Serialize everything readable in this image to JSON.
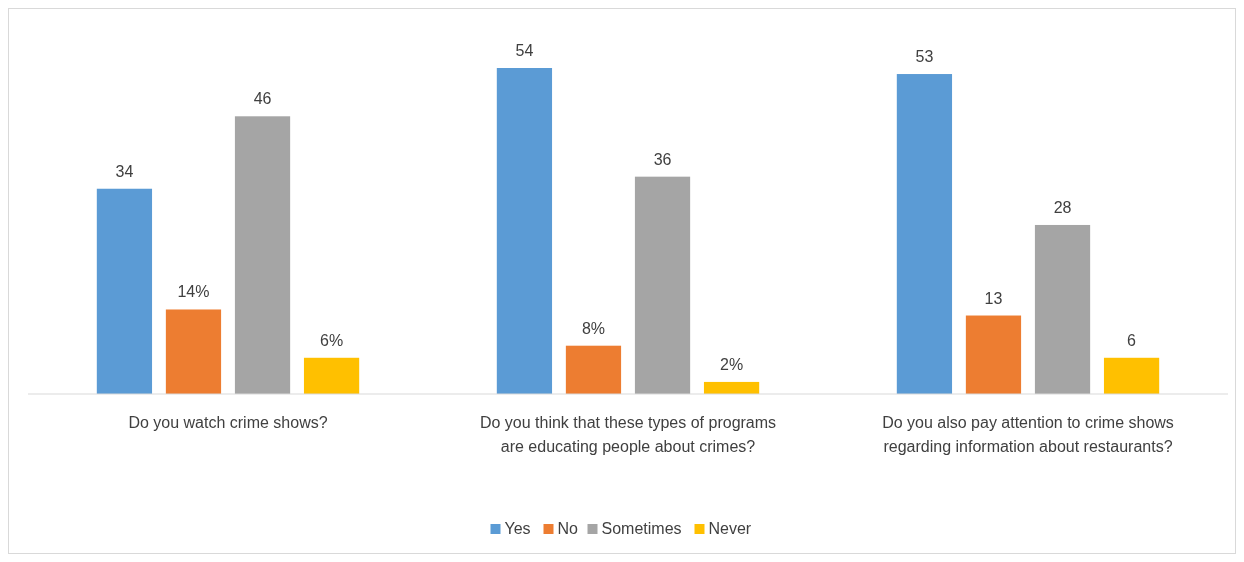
{
  "chart_data": {
    "type": "bar",
    "categories": [
      "Do you watch crime shows?",
      "Do you think that these types of programs are educating people about crimes?",
      "Do you also pay attention to crime shows regarding information about restaurants?"
    ],
    "series": [
      {
        "name": "Yes",
        "color": "#5b9bd5",
        "values": [
          34,
          54,
          53
        ],
        "value_labels": [
          "34",
          "54",
          "53"
        ]
      },
      {
        "name": "No",
        "color": "#ed7d31",
        "values": [
          14,
          8,
          13
        ],
        "value_labels": [
          "14%",
          "8%",
          "13"
        ]
      },
      {
        "name": "Sometimes",
        "color": "#a5a5a5",
        "values": [
          46,
          36,
          28
        ],
        "value_labels": [
          "46",
          "36",
          "28"
        ]
      },
      {
        "name": "Never",
        "color": "#ffc000",
        "values": [
          6,
          2,
          6
        ],
        "value_labels": [
          "6%",
          "2%",
          "6"
        ]
      }
    ],
    "legend": "bottom"
  }
}
